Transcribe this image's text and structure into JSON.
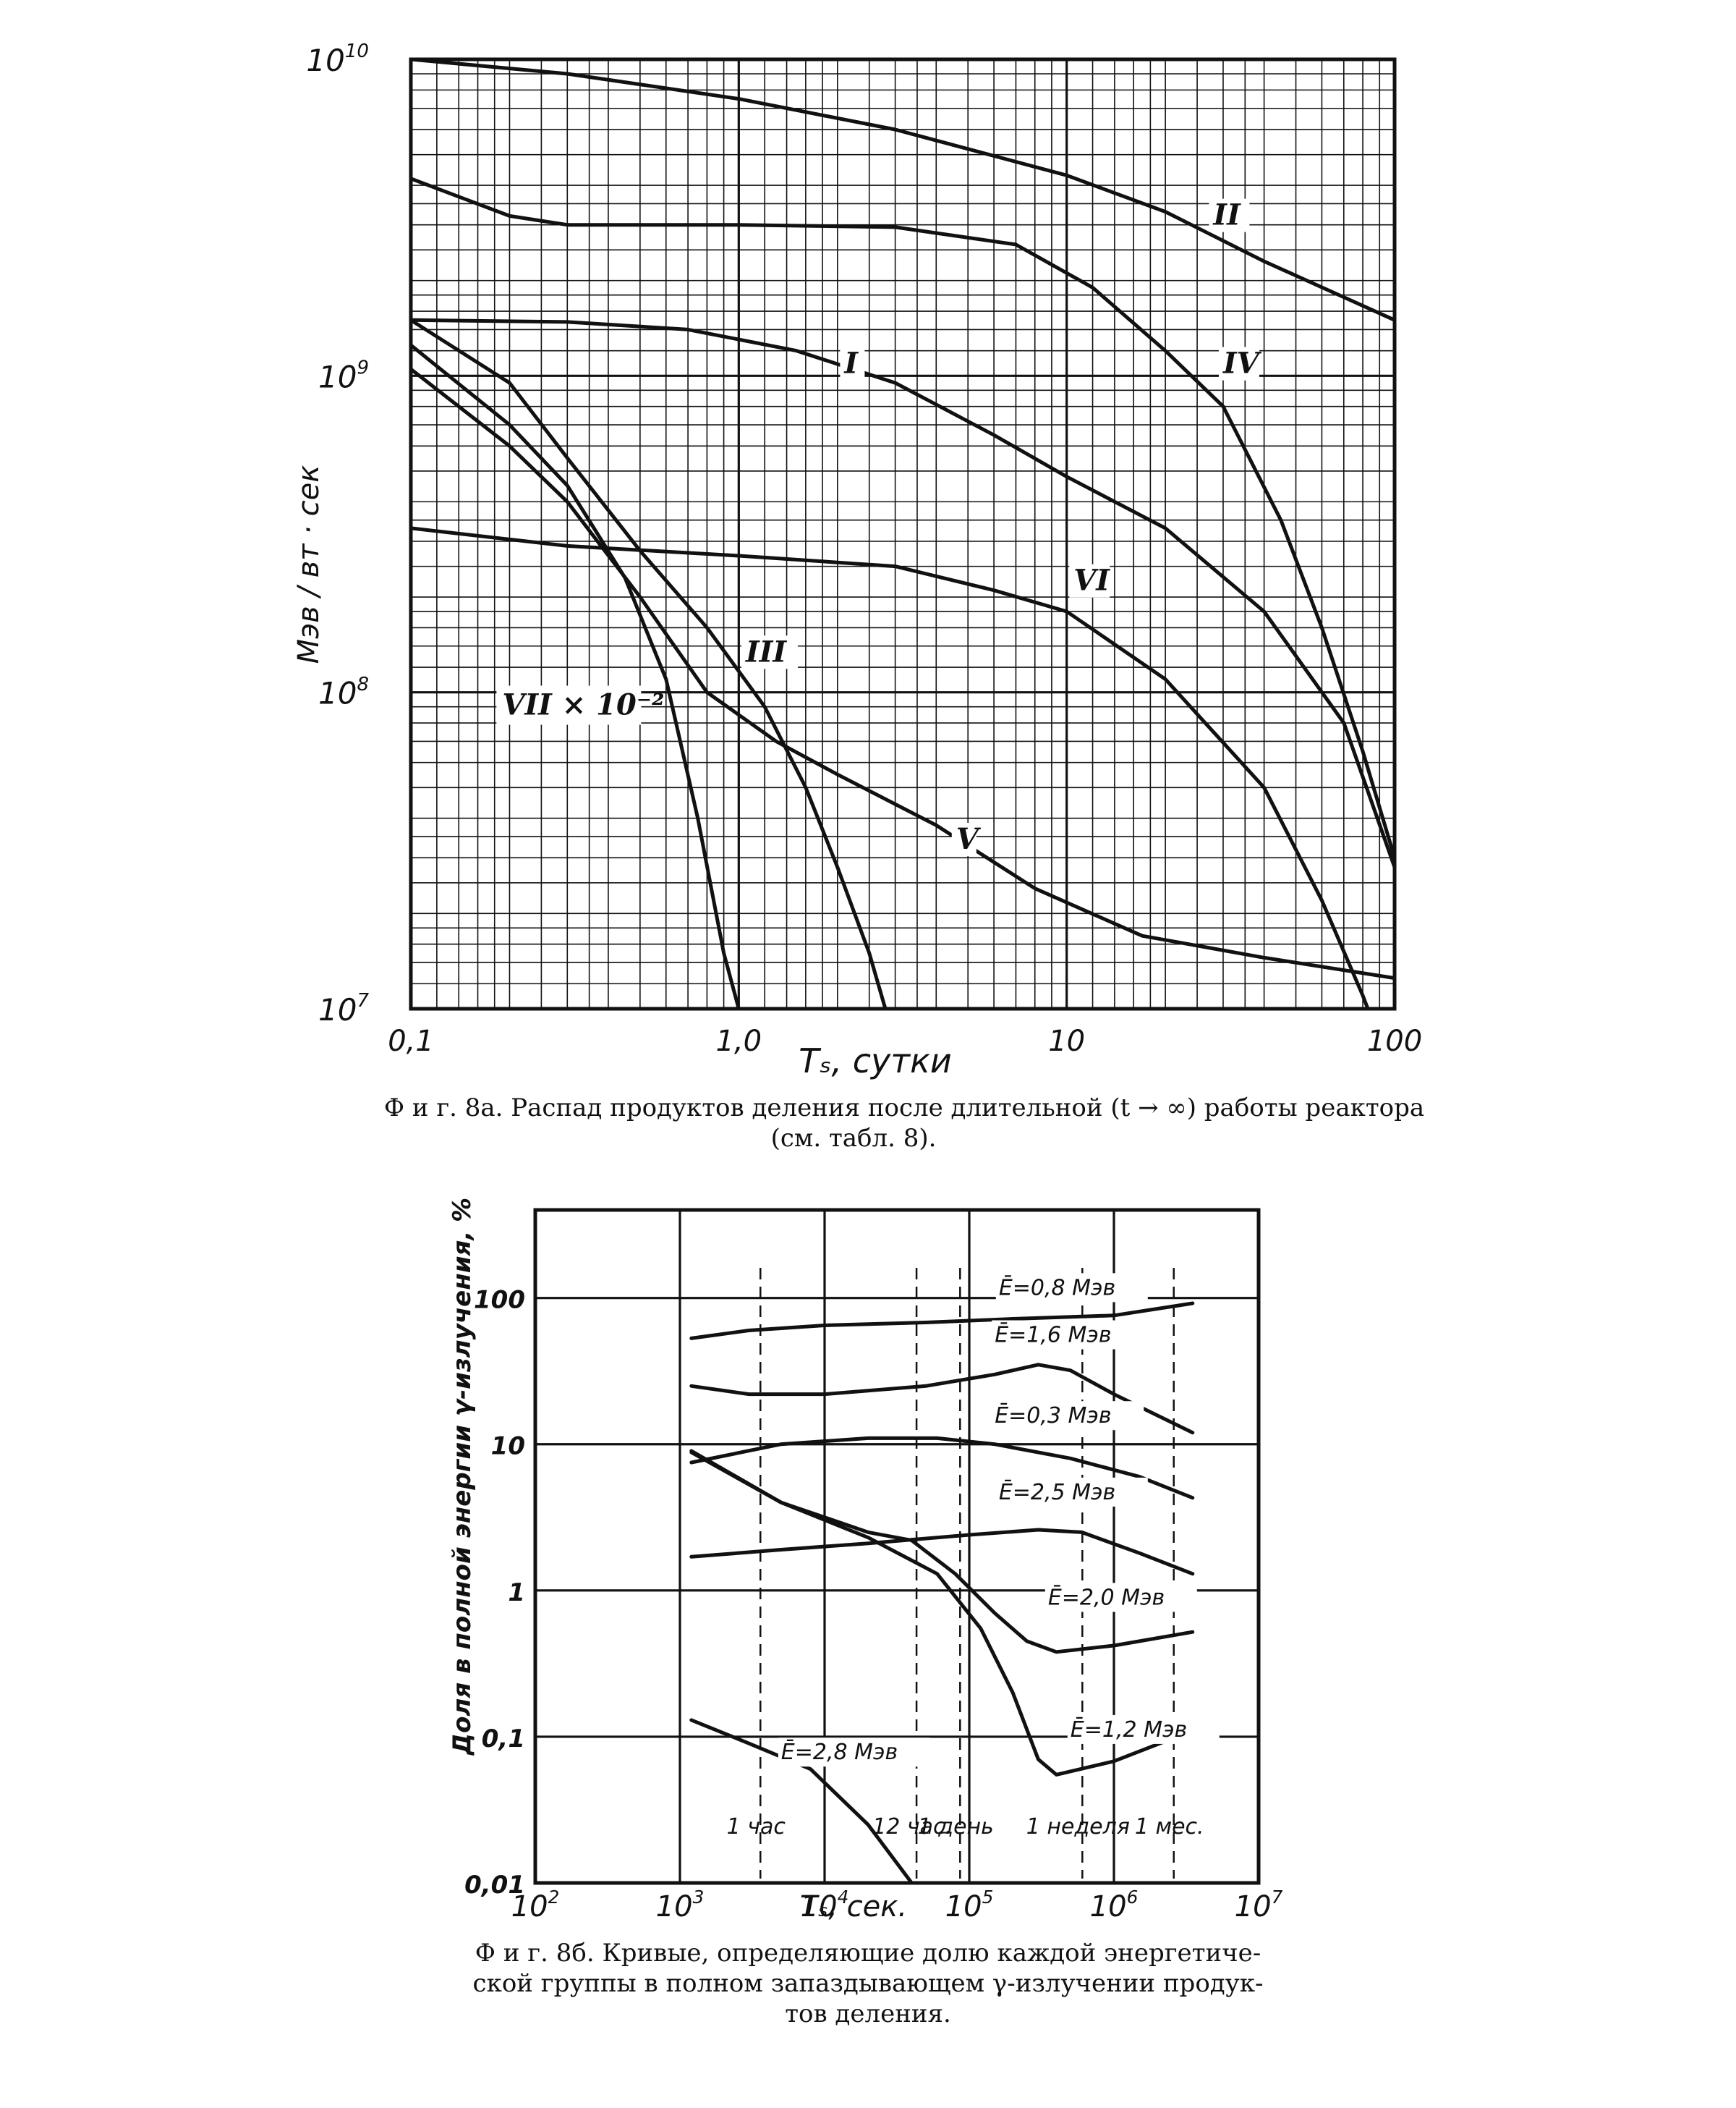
{
  "figures": {
    "a": {
      "caption_line1": "Ф и г. 8а. Распад продуктов деления после длительной (t → ∞) работы реактора",
      "caption_line2": "(см. табл. 8)."
    },
    "b": {
      "caption_line1": "Ф и г. 8б. Кривые, определяющие долю каждой энергетиче-",
      "caption_line2": "ской группы в полном запаздывающем γ-излучении продук-",
      "caption_line3": "тов деления."
    }
  },
  "chart_data": [
    {
      "type": "line",
      "xscale": "log",
      "yscale": "log",
      "xlim": [
        0.1,
        100
      ],
      "ylim": [
        10000000,
        10000000000
      ],
      "grid": true,
      "xlabel": "Tₛ, сутки",
      "ylabel": "Мэв / вт · сек",
      "x_tick_labels": [
        "0,1",
        "1,0",
        "10",
        "100"
      ],
      "x_ticks": [
        0.1,
        1,
        10,
        100
      ],
      "y_ticks": [
        10000000,
        100000000,
        1000000000,
        10000000000
      ],
      "y_tick_labels": [
        {
          "base": "10",
          "exp": "7"
        },
        {
          "base": "10",
          "exp": "8"
        },
        {
          "base": "10",
          "exp": "9"
        },
        {
          "base": "10",
          "exp": "10"
        }
      ],
      "series": [
        {
          "name": "I",
          "points": [
            [
              0.1,
              1500000000
            ],
            [
              0.3,
              1480000000
            ],
            [
              0.7,
              1400000000
            ],
            [
              1.5,
              1200000000
            ],
            [
              3,
              950000000
            ],
            [
              6,
              650000000
            ],
            [
              10,
              480000000
            ],
            [
              20,
              330000000
            ],
            [
              40,
              180000000
            ],
            [
              70,
              80000000
            ],
            [
              100,
              28000000
            ]
          ]
        },
        {
          "name": "II",
          "points": [
            [
              0.1,
              10000000000
            ],
            [
              0.3,
              9000000000
            ],
            [
              1,
              7500000000
            ],
            [
              3,
              6000000000
            ],
            [
              10,
              4300000000
            ],
            [
              20,
              3300000000
            ],
            [
              40,
              2300000000
            ],
            [
              100,
              1500000000
            ]
          ]
        },
        {
          "name": "III",
          "points": [
            [
              0.1,
              1500000000
            ],
            [
              0.2,
              950000000
            ],
            [
              0.3,
              550000000
            ],
            [
              0.5,
              280000000
            ],
            [
              0.8,
              160000000
            ],
            [
              1.2,
              90000000
            ],
            [
              1.6,
              50000000
            ],
            [
              2,
              28000000
            ],
            [
              2.5,
              15000000
            ],
            [
              2.8,
              10000000
            ]
          ]
        },
        {
          "name": "IV",
          "points": [
            [
              0.1,
              4200000000
            ],
            [
              0.2,
              3200000000
            ],
            [
              0.3,
              3000000000
            ],
            [
              1,
              3000000000
            ],
            [
              3,
              2950000000
            ],
            [
              7,
              2600000000
            ],
            [
              12,
              1900000000
            ],
            [
              20,
              1200000000
            ],
            [
              30,
              800000000
            ],
            [
              45,
              350000000
            ],
            [
              60,
              160000000
            ],
            [
              80,
              65000000
            ],
            [
              100,
              30000000
            ]
          ]
        },
        {
          "name": "V",
          "points": [
            [
              0.1,
              1050000000
            ],
            [
              0.2,
              600000000
            ],
            [
              0.3,
              400000000
            ],
            [
              0.5,
              200000000
            ],
            [
              0.8,
              100000000
            ],
            [
              1.3,
              70000000
            ],
            [
              2,
              55000000
            ],
            [
              4,
              38000000
            ],
            [
              8,
              24000000
            ],
            [
              17,
              17000000
            ],
            [
              40,
              14500000
            ],
            [
              100,
              12500000
            ]
          ]
        },
        {
          "name": "VI",
          "points": [
            [
              0.1,
              330000000
            ],
            [
              0.3,
              290000000
            ],
            [
              1,
              270000000
            ],
            [
              3,
              250000000
            ],
            [
              6,
              210000000
            ],
            [
              10,
              180000000
            ],
            [
              20,
              110000000
            ],
            [
              40,
              50000000
            ],
            [
              60,
              22000000
            ],
            [
              80,
              11000000
            ],
            [
              90,
              8000000
            ]
          ]
        },
        {
          "name": "VII × 10⁻²",
          "points": [
            [
              0.1,
              1250000000
            ],
            [
              0.2,
              700000000
            ],
            [
              0.3,
              450000000
            ],
            [
              0.45,
              230000000
            ],
            [
              0.6,
              110000000
            ],
            [
              0.75,
              40000000
            ],
            [
              0.9,
              15000000
            ],
            [
              1.0,
              10000000
            ]
          ]
        }
      ],
      "curve_labels": [
        {
          "text": "I",
          "x": 2.1,
          "y": 1020000000
        },
        {
          "text": "II",
          "x": 28,
          "y": 3000000000
        },
        {
          "text": "III",
          "x": 1.05,
          "y": 125000000
        },
        {
          "text": "IV",
          "x": 30,
          "y": 1020000000
        },
        {
          "text": "V",
          "x": 4.6,
          "y": 32000000
        },
        {
          "text": "VI",
          "x": 10.5,
          "y": 210000000
        },
        {
          "text": "VII × 10⁻²",
          "x": 0.19,
          "y": 85000000
        }
      ]
    },
    {
      "type": "line",
      "xscale": "log",
      "yscale": "log",
      "xlim": [
        100,
        10000000
      ],
      "ylim": [
        0.01,
        400
      ],
      "grid": true,
      "xlabel": "Tₛ, сек.",
      "ylabel": "Доля в полной энергии γ-излучения, %",
      "x_ticks": [
        100,
        1000,
        10000,
        100000,
        1000000,
        10000000
      ],
      "x_tick_labels": [
        {
          "base": "10",
          "exp": "2"
        },
        {
          "base": "10",
          "exp": "3"
        },
        {
          "base": "10",
          "exp": "4"
        },
        {
          "base": "10",
          "exp": "5"
        },
        {
          "base": "10",
          "exp": "6"
        },
        {
          "base": "10",
          "exp": "7"
        }
      ],
      "y_ticks": [
        0.01,
        0.1,
        1,
        10,
        100
      ],
      "y_tick_labels": [
        "0,01",
        "0,1",
        "1",
        "10",
        "100"
      ],
      "time_markers": [
        {
          "label": "1 час",
          "x": 3600
        },
        {
          "label": "12 час.",
          "x": 43200
        },
        {
          "label": "1 день",
          "x": 86400
        },
        {
          "label": "1 неделя",
          "x": 604800
        },
        {
          "label": "1 мес.",
          "x": 2592000
        }
      ],
      "series": [
        {
          "name": "Ē=0,8 Мэв",
          "points": [
            [
              1200,
              53
            ],
            [
              3000,
              60
            ],
            [
              10000,
              65
            ],
            [
              50000,
              68
            ],
            [
              200000,
              72
            ],
            [
              1000000,
              76
            ],
            [
              3500000,
              92
            ]
          ]
        },
        {
          "name": "Ē=1,6 Мэв",
          "points": [
            [
              1200,
              25
            ],
            [
              3000,
              22
            ],
            [
              10000,
              22
            ],
            [
              50000,
              25
            ],
            [
              150000,
              30
            ],
            [
              300000,
              35
            ],
            [
              500000,
              32
            ],
            [
              1000000,
              22
            ],
            [
              3500000,
              12
            ]
          ]
        },
        {
          "name": "Ē=0,3 Мэв",
          "points": [
            [
              1200,
              7.5
            ],
            [
              5000,
              10
            ],
            [
              20000,
              11
            ],
            [
              60000,
              11
            ],
            [
              150000,
              10
            ],
            [
              500000,
              8
            ],
            [
              1500000,
              6
            ],
            [
              3500000,
              4.3
            ]
          ]
        },
        {
          "name": "Ē=2,5 Мэв",
          "points": [
            [
              1200,
              1.7
            ],
            [
              5000,
              1.9
            ],
            [
              20000,
              2.1
            ],
            [
              100000,
              2.4
            ],
            [
              300000,
              2.6
            ],
            [
              600000,
              2.5
            ],
            [
              1500000,
              1.8
            ],
            [
              3500000,
              1.3
            ]
          ]
        },
        {
          "name": "Ē=2,0 Мэв",
          "points": [
            [
              1200,
              9
            ],
            [
              5000,
              4
            ],
            [
              20000,
              2.5
            ],
            [
              40000,
              2.2
            ],
            [
              80000,
              1.3
            ],
            [
              150000,
              0.7
            ],
            [
              250000,
              0.45
            ],
            [
              400000,
              0.38
            ],
            [
              1000000,
              0.42
            ],
            [
              3500000,
              0.52
            ]
          ]
        },
        {
          "name": "Ē=1,2 Мэв",
          "points": [
            [
              1200,
              8.8
            ],
            [
              5000,
              4
            ],
            [
              20000,
              2.3
            ],
            [
              60000,
              1.3
            ],
            [
              120000,
              0.55
            ],
            [
              200000,
              0.2
            ],
            [
              300000,
              0.07
            ],
            [
              400000,
              0.055
            ],
            [
              1000000,
              0.068
            ],
            [
              3500000,
              0.11
            ]
          ]
        },
        {
          "name": "Ē=2,8 Мэв",
          "points": [
            [
              1200,
              0.13
            ],
            [
              3000,
              0.09
            ],
            [
              8000,
              0.06
            ],
            [
              20000,
              0.025
            ],
            [
              40000,
              0.01
            ]
          ]
        }
      ],
      "curve_labels": [
        {
          "text": "Ē=0,8 Мэв",
          "x": 160000,
          "y": 105
        },
        {
          "text": "Ē=1,6 Мэв",
          "x": 150000,
          "y": 50
        },
        {
          "text": "Ē=0,3 Мэв",
          "x": 150000,
          "y": 14
        },
        {
          "text": "Ē=2,5 Мэв",
          "x": 160000,
          "y": 4.2
        },
        {
          "text": "Ē=2,0 Мэв",
          "x": 350000,
          "y": 0.8
        },
        {
          "text": "Ē=1,2 Мэв",
          "x": 500000,
          "y": 0.1
        },
        {
          "text": "Ē=2,8 Мэв",
          "x": 5000,
          "y": 0.07
        }
      ]
    }
  ]
}
